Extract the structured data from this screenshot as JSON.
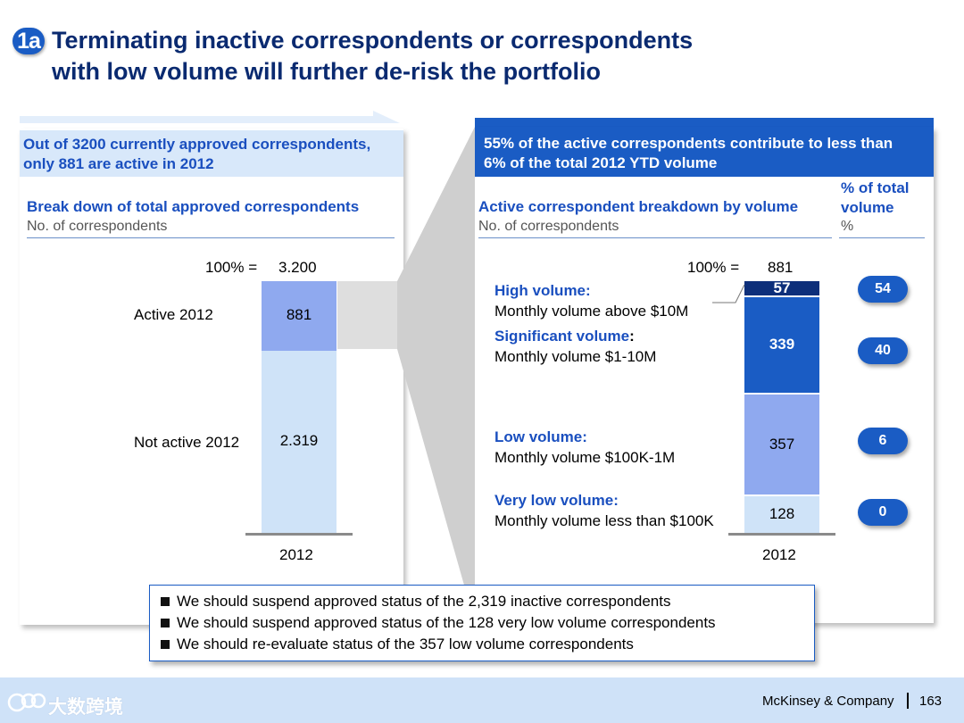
{
  "header": {
    "badge": "1a",
    "title_line1": "Terminating inactive correspondents or correspondents",
    "title_line2": "with low volume will further de-risk the portfolio"
  },
  "left_panel": {
    "headline_line1": "Out of 3200 currently approved correspondents,",
    "headline_line2": "only 881 are active in 2012",
    "chart_title": "Break down of total approved correspondents",
    "chart_subtitle": "No. of correspondents",
    "total_prefix": "100% =",
    "total_value": "3.200"
  },
  "right_panel": {
    "headline_line1": "55% of the active correspondents contribute to less than",
    "headline_line2": "6% of the total 2012 YTD volume",
    "chart_title": "Active correspondent breakdown by volume",
    "chart_subtitle": "No. of correspondents",
    "pct_header_line1": "% of total",
    "pct_header_line2": "volume",
    "pct_subheader": "%",
    "total_prefix": "100% =",
    "total_value": "881"
  },
  "chart_data": [
    {
      "type": "bar",
      "stacked": true,
      "categories": [
        "2012"
      ],
      "series": [
        {
          "name": "Not active 2012",
          "values": [
            2319
          ],
          "label": "2.319",
          "color": "#cfe3f8"
        },
        {
          "name": "Active 2012",
          "values": [
            881
          ],
          "label": "881",
          "color": "#8fa9ef"
        }
      ],
      "total": 3200,
      "total_label": "3.200"
    },
    {
      "type": "bar",
      "stacked": true,
      "categories": [
        "2012"
      ],
      "series": [
        {
          "name": "Very low volume:",
          "desc": "Monthly volume less than $100K",
          "values": [
            128
          ],
          "label": "128",
          "pct": "0",
          "color": "#cfe3f8",
          "text_color": "#000000"
        },
        {
          "name": "Low volume:",
          "desc": "Monthly volume $100K-1M",
          "values": [
            357
          ],
          "label": "357",
          "pct": "6",
          "color": "#8fa9ef",
          "text_color": "#000000"
        },
        {
          "name": "Significant volume",
          "desc": "Monthly volume $1-10M",
          "values": [
            339
          ],
          "label": "339",
          "pct": "40",
          "color": "#1a5cc4",
          "text_color": "#ffffff"
        },
        {
          "name": "High volume:",
          "desc": "Monthly volume above $10M",
          "values": [
            57
          ],
          "label": "57",
          "pct": "54",
          "color": "#0d2f7a",
          "text_color": "#ffffff"
        }
      ],
      "total": 881,
      "total_label": "881"
    }
  ],
  "bullets": [
    "We should suspend approved status of the 2,319 inactive correspondents",
    "We should suspend approved status of the 128 very low volume correspondents",
    "We should re-evaluate status of the 357 low volume correspondents"
  ],
  "footer": {
    "watermark": "大数跨境",
    "company": "McKinsey & Company",
    "page": "163"
  },
  "colors": {
    "title": "#0a2a70",
    "accent": "#1a5cc4",
    "left_header_bg": "#d8e8fa",
    "right_header_bg": "#1a5cc4",
    "footer_bg": "#cfe2f8"
  }
}
